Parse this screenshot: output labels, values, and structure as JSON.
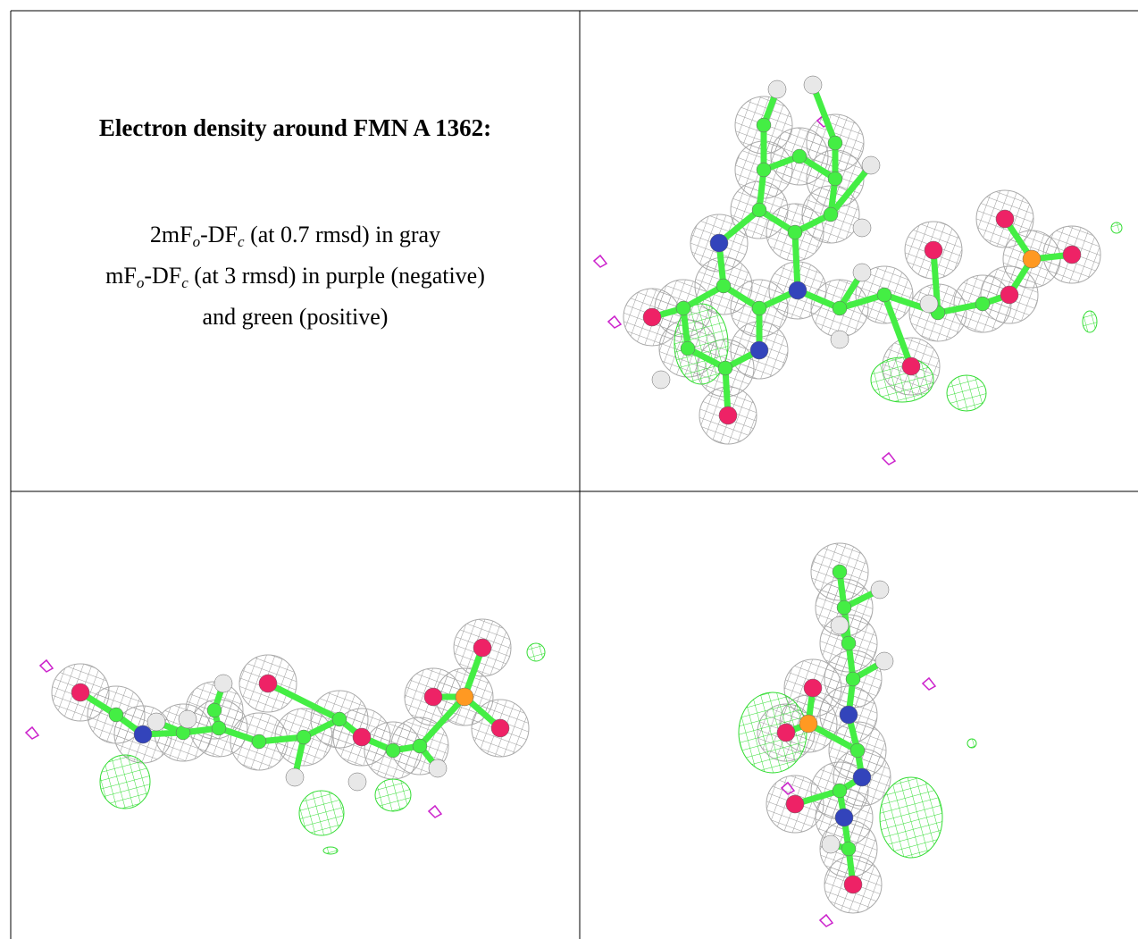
{
  "title": "Electron density around FMN A 1362:",
  "legend": {
    "lines": [
      [
        "2mF",
        "o",
        "-DF",
        "c",
        " (at 0.7 rmsd) in gray"
      ],
      [
        "mF",
        "o",
        "-DF",
        "c",
        " (at 3 rmsd) in purple (negative)"
      ],
      [
        "and green (positive)"
      ]
    ]
  }
}
